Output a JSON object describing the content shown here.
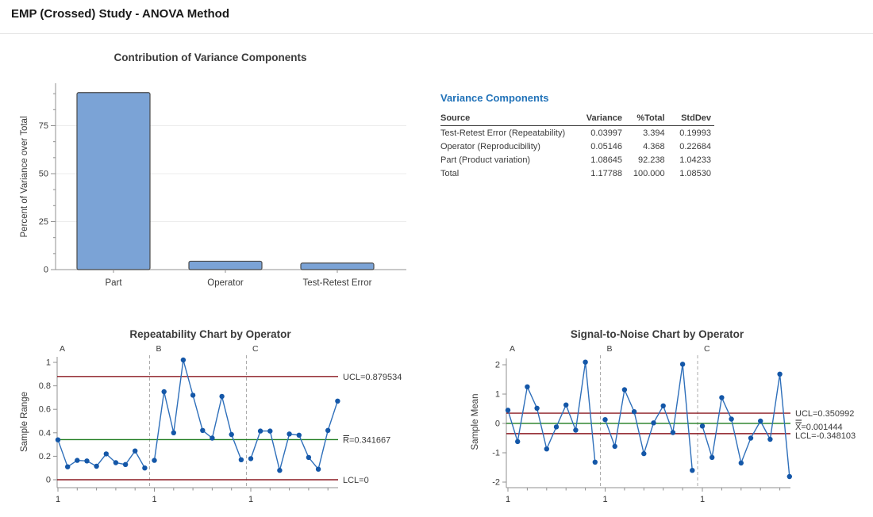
{
  "page": {
    "title": "EMP (Crossed) Study - ANOVA Method"
  },
  "variance_table": {
    "title": "Variance Components",
    "headers": [
      "Source",
      "Variance",
      "%Total",
      "StdDev"
    ],
    "rows": [
      [
        "Test-Retest Error (Repeatability)",
        "0.03997",
        "3.394",
        "0.19993"
      ],
      [
        "Operator (Reproducibility)",
        "0.05146",
        "4.368",
        "0.22684"
      ],
      [
        "Part (Product variation)",
        "1.08645",
        "92.238",
        "1.04233"
      ],
      [
        "Total",
        "1.17788",
        "100.000",
        "1.08530"
      ]
    ]
  },
  "colors": {
    "bar_fill": "#7BA3D6",
    "bar_border": "#4A4A4A",
    "point": "#1457A8",
    "line": "#2E6FBA",
    "limit_line": "#8B1A22",
    "center_line": "#1E7B1E",
    "heading_blue": "#2273B9",
    "grid": "#ECECEC",
    "axis": "#909090",
    "separator": "#ABABAB",
    "text": "#3B3B3B"
  },
  "chart_data": [
    {
      "type": "bar",
      "title": "Contribution of Variance Components",
      "ylabel": "Percent of Variance over Total",
      "xlabel": "",
      "categories": [
        "Part",
        "Operator",
        "Test-Retest Error"
      ],
      "values": [
        92.238,
        4.368,
        3.394
      ],
      "yticks": [
        0,
        25,
        50,
        75
      ],
      "ylim": [
        0,
        100
      ],
      "grid": true,
      "legend_position": "none"
    },
    {
      "type": "line",
      "subtype": "control-chart",
      "title": "Repeatability Chart by Operator",
      "ylabel": "Sample Range",
      "groups": [
        "A",
        "B",
        "C"
      ],
      "xtick_label": "1",
      "series": [
        {
          "name": "A",
          "values": [
            0.34,
            0.11,
            0.165,
            0.16,
            0.115,
            0.22,
            0.145,
            0.13,
            0.245,
            0.1
          ]
        },
        {
          "name": "B",
          "values": [
            0.165,
            0.75,
            0.4,
            1.02,
            0.72,
            0.42,
            0.355,
            0.71,
            0.385,
            0.17
          ]
        },
        {
          "name": "C",
          "values": [
            0.18,
            0.415,
            0.415,
            0.08,
            0.39,
            0.38,
            0.19,
            0.09,
            0.42,
            0.67
          ]
        }
      ],
      "reference_lines": {
        "ucl": {
          "value": 0.879534,
          "label": "UCL=0.879534"
        },
        "center": {
          "value": 0.341667,
          "label": "R=0.341667",
          "overbar": 1
        },
        "lcl": {
          "value": 0,
          "label": "LCL=0"
        }
      },
      "yticks": [
        0,
        0.2,
        0.4,
        0.6,
        0.8,
        1
      ],
      "ylim": [
        -0.07,
        1.12
      ],
      "grid": false,
      "legend_position": "right"
    },
    {
      "type": "line",
      "subtype": "control-chart",
      "title": "Signal-to-Noise Chart by Operator",
      "ylabel": "Sample Mean",
      "groups": [
        "A",
        "B",
        "C"
      ],
      "xtick_label": "1",
      "series": [
        {
          "name": "A",
          "values": [
            0.45,
            -0.62,
            1.25,
            0.52,
            -0.87,
            -0.12,
            0.63,
            -0.23,
            2.09,
            -1.32
          ]
        },
        {
          "name": "B",
          "values": [
            0.13,
            -0.78,
            1.15,
            0.4,
            -1.03,
            0.02,
            0.6,
            -0.31,
            2.02,
            -1.6
          ]
        },
        {
          "name": "C",
          "values": [
            -0.09,
            -1.16,
            0.88,
            0.15,
            -1.35,
            -0.5,
            0.08,
            -0.54,
            1.68,
            -1.81
          ]
        }
      ],
      "reference_lines": {
        "ucl": {
          "value": 0.350992,
          "label": "UCL=0.350992"
        },
        "center": {
          "value": 0.001444,
          "label": "X=0.001444",
          "overbar": 2
        },
        "lcl": {
          "value": -0.348103,
          "label": "LCL=-0.348103"
        }
      },
      "yticks": [
        -2,
        -1,
        0,
        1,
        2
      ],
      "ylim": [
        -2.2,
        2.2
      ],
      "grid": false,
      "legend_position": "right"
    }
  ]
}
